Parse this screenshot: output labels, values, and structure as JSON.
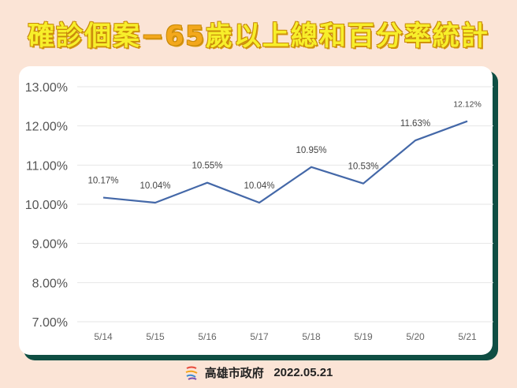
{
  "title": {
    "part1": "確診個案",
    "dash": "−",
    "num": "65",
    "part2": "歲以上總和百分率統計"
  },
  "footer": {
    "org": "高雄市政府",
    "date": "2022.05.21",
    "logo_icon": "kaohsiung-city-logo-icon"
  },
  "colors": {
    "background": "#fbe4d6",
    "card": "#ffffff",
    "card_shadow": "#0f4e43",
    "line": "#4468a8",
    "grid": "#e6e6e6",
    "title_fill": "#f7ef2a",
    "title_accent": "#f3a81c"
  },
  "chart_data": {
    "type": "line",
    "title": "確診個案−65歲以上總和百分率統計",
    "xlabel": "",
    "ylabel": "",
    "categories": [
      "5/14",
      "5/15",
      "5/16",
      "5/17",
      "5/18",
      "5/19",
      "5/20",
      "5/21"
    ],
    "series": [
      {
        "name": "65歲以上總和百分率",
        "values": [
          10.17,
          10.04,
          10.55,
          10.04,
          10.95,
          10.53,
          11.63,
          12.12
        ]
      }
    ],
    "data_labels": [
      "10.17%",
      "10.04%",
      "10.55%",
      "10.04%",
      "10.95%",
      "10.53%",
      "11.63%",
      "12.12%"
    ],
    "yticks": [
      "7.00%",
      "8.00%",
      "9.00%",
      "10.00%",
      "11.00%",
      "12.00%",
      "13.00%"
    ],
    "ylim": [
      7,
      13
    ],
    "grid": true,
    "legend": "none"
  }
}
